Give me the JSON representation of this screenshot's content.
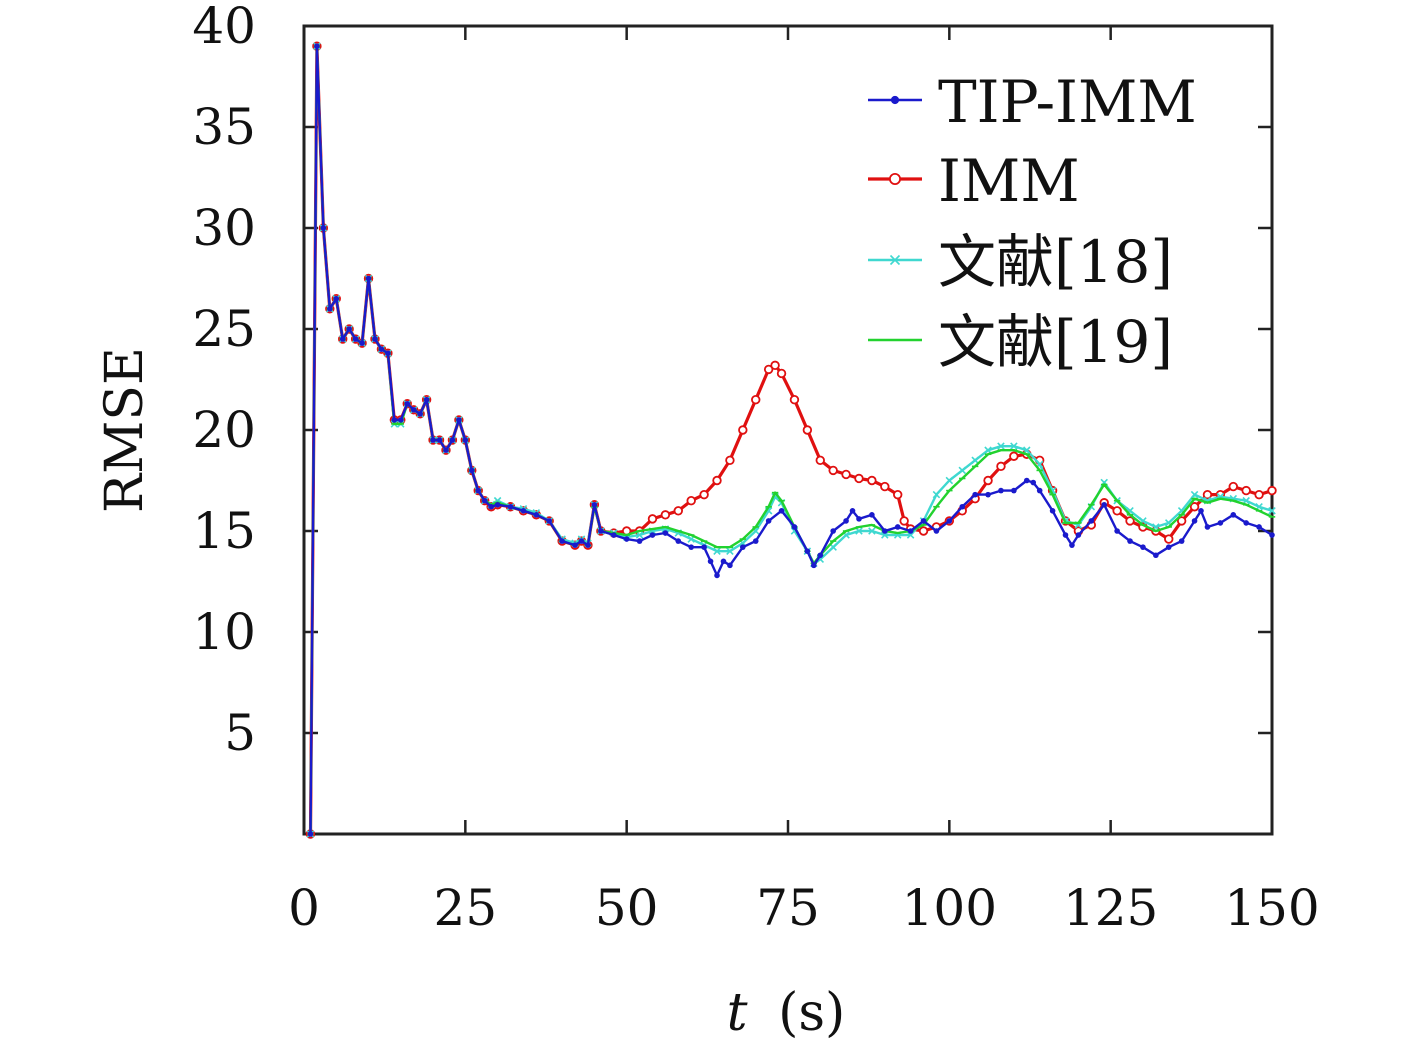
{
  "chart_data": {
    "type": "line",
    "xlabel_var": "t",
    "xlabel_unit": "(s)",
    "ylabel": "RMSE",
    "xlim": [
      0,
      150
    ],
    "ylim": [
      0,
      40
    ],
    "xticks": [
      0,
      25,
      50,
      75,
      100,
      125,
      150
    ],
    "yticks": [
      5,
      10,
      15,
      20,
      25,
      30,
      35,
      40
    ],
    "x_tick_labels": [
      "0",
      "25",
      "50",
      "75",
      "100",
      "125",
      "150"
    ],
    "y_tick_labels": [
      "5",
      "10",
      "15",
      "20",
      "25",
      "30",
      "35",
      "40"
    ],
    "grid": false,
    "legend_position": "top-right",
    "colors": {
      "TIP-IMM": "#1a1acc",
      "IMM": "#e01010",
      "文献[18]": "#3fd8d0",
      "文献[19]": "#22d22f"
    },
    "markers": {
      "TIP-IMM": "star",
      "IMM": "circle",
      "文献[18]": "x",
      "文献[19]": "dash"
    },
    "series": [
      {
        "name": "TIP-IMM",
        "x": [
          1,
          2,
          3,
          4,
          5,
          6,
          7,
          8,
          9,
          10,
          11,
          12,
          13,
          14,
          15,
          16,
          17,
          18,
          19,
          20,
          21,
          22,
          23,
          24,
          25,
          26,
          27,
          28,
          29,
          30,
          32,
          34,
          36,
          38,
          40,
          42,
          43,
          44,
          45,
          46,
          48,
          50,
          52,
          54,
          56,
          58,
          60,
          62,
          63,
          64,
          65,
          66,
          68,
          70,
          72,
          74,
          76,
          78,
          79,
          80,
          82,
          84,
          85,
          86,
          88,
          90,
          92,
          94,
          96,
          98,
          100,
          102,
          104,
          106,
          108,
          110,
          112,
          113,
          114,
          116,
          118,
          119,
          120,
          122,
          124,
          126,
          128,
          130,
          132,
          134,
          136,
          138,
          139,
          140,
          142,
          144,
          146,
          148,
          150
        ],
        "y": [
          0,
          39,
          30,
          26,
          26.5,
          24.5,
          25,
          24.5,
          24.3,
          27.5,
          24.5,
          24,
          23.8,
          20.5,
          20.5,
          21.3,
          21,
          20.8,
          21.5,
          19.5,
          19.5,
          19,
          19.5,
          20.5,
          19.5,
          18,
          17,
          16.5,
          16.2,
          16.3,
          16.2,
          16,
          15.8,
          15.5,
          14.5,
          14.3,
          14.5,
          14.3,
          16.3,
          15,
          14.8,
          14.6,
          14.5,
          14.8,
          14.9,
          14.5,
          14.2,
          14.2,
          13.5,
          12.8,
          13.5,
          13.3,
          14.2,
          14.5,
          15.5,
          16,
          15.2,
          14,
          13.3,
          13.8,
          15,
          15.5,
          16,
          15.6,
          15.8,
          15,
          15.2,
          15,
          15.5,
          15,
          15.5,
          16.2,
          16.8,
          16.8,
          17,
          17,
          17.5,
          17.4,
          17,
          16,
          14.8,
          14.3,
          14.8,
          15.5,
          16.3,
          15,
          14.5,
          14.2,
          13.8,
          14.2,
          14.5,
          15.5,
          16,
          15.2,
          15.4,
          15.8,
          15.4,
          15.2,
          14.8
        ]
      },
      {
        "name": "IMM",
        "x": [
          1,
          2,
          3,
          4,
          5,
          6,
          7,
          8,
          9,
          10,
          11,
          12,
          13,
          14,
          15,
          16,
          17,
          18,
          19,
          20,
          21,
          22,
          23,
          24,
          25,
          26,
          27,
          28,
          29,
          30,
          32,
          34,
          36,
          38,
          40,
          42,
          43,
          44,
          45,
          46,
          48,
          50,
          52,
          54,
          56,
          58,
          60,
          62,
          64,
          66,
          68,
          70,
          72,
          73,
          74,
          76,
          78,
          80,
          82,
          84,
          86,
          88,
          90,
          92,
          93,
          94,
          96,
          98,
          100,
          102,
          104,
          106,
          108,
          110,
          112,
          114,
          116,
          118,
          120,
          122,
          124,
          126,
          128,
          130,
          132,
          134,
          136,
          138,
          140,
          142,
          144,
          146,
          148,
          150
        ],
        "y": [
          0,
          39,
          30,
          26,
          26.5,
          24.5,
          25,
          24.5,
          24.3,
          27.5,
          24.5,
          24,
          23.8,
          20.5,
          20.5,
          21.3,
          21,
          20.8,
          21.5,
          19.5,
          19.5,
          19,
          19.5,
          20.5,
          19.5,
          18,
          17,
          16.5,
          16.2,
          16.3,
          16.2,
          16,
          15.8,
          15.5,
          14.5,
          14.3,
          14.5,
          14.3,
          16.3,
          15,
          14.9,
          15,
          15,
          15.6,
          15.8,
          16,
          16.5,
          16.8,
          17.5,
          18.5,
          20,
          21.5,
          23,
          23.2,
          22.8,
          21.5,
          20,
          18.5,
          18,
          17.8,
          17.6,
          17.5,
          17.2,
          16.8,
          15.5,
          15.1,
          15,
          15.2,
          15.5,
          16,
          16.6,
          17.5,
          18.2,
          18.7,
          18.8,
          18.5,
          17,
          15.5,
          15,
          15.3,
          16.4,
          16,
          15.5,
          15.2,
          15,
          14.6,
          15.5,
          16.2,
          16.8,
          16.8,
          17.2,
          17,
          16.8,
          17
        ]
      },
      {
        "name": "文献[18]",
        "x": [
          1,
          2,
          3,
          4,
          5,
          6,
          7,
          8,
          9,
          10,
          11,
          12,
          13,
          14,
          15,
          16,
          17,
          18,
          19,
          20,
          21,
          22,
          23,
          24,
          25,
          26,
          27,
          28,
          29,
          30,
          32,
          34,
          36,
          38,
          40,
          42,
          43,
          44,
          45,
          46,
          48,
          50,
          52,
          54,
          56,
          58,
          60,
          62,
          64,
          66,
          68,
          70,
          72,
          73,
          74,
          76,
          78,
          79,
          80,
          82,
          84,
          86,
          88,
          90,
          92,
          94,
          96,
          98,
          100,
          102,
          104,
          106,
          108,
          110,
          112,
          114,
          116,
          118,
          120,
          122,
          124,
          126,
          128,
          130,
          132,
          134,
          136,
          138,
          140,
          142,
          144,
          146,
          148,
          150
        ],
        "y": [
          0,
          39,
          30,
          26,
          26.5,
          24.5,
          25,
          24.5,
          24.3,
          27.5,
          24.5,
          24,
          23.8,
          20.3,
          20.3,
          21.3,
          21,
          20.8,
          21.5,
          19.5,
          19.5,
          19,
          19.5,
          20.5,
          19.5,
          18,
          17,
          16.5,
          16.3,
          16.5,
          16.2,
          16.1,
          15.9,
          15.5,
          14.6,
          14.4,
          14.6,
          14.4,
          16.3,
          15,
          14.9,
          14.7,
          14.8,
          15,
          15.1,
          14.9,
          14.6,
          14.3,
          14,
          14,
          14.4,
          15,
          16,
          16.7,
          16.4,
          15,
          14,
          13.4,
          13.6,
          14.2,
          14.8,
          15,
          15,
          14.8,
          14.8,
          14.8,
          15.5,
          16.8,
          17.5,
          18,
          18.5,
          19,
          19.2,
          19.2,
          19,
          18.3,
          17,
          15.5,
          15.3,
          16.2,
          17.4,
          16.5,
          16,
          15.5,
          15.2,
          15.4,
          16,
          16.8,
          16.5,
          16.7,
          16.6,
          16.5,
          16.2,
          16
        ]
      },
      {
        "name": "文献[19]",
        "x": [
          1,
          2,
          3,
          4,
          5,
          6,
          7,
          8,
          9,
          10,
          11,
          12,
          13,
          14,
          15,
          16,
          17,
          18,
          19,
          20,
          21,
          22,
          23,
          24,
          25,
          26,
          27,
          28,
          29,
          30,
          32,
          34,
          36,
          38,
          40,
          42,
          43,
          44,
          45,
          46,
          48,
          50,
          52,
          54,
          56,
          58,
          60,
          62,
          64,
          66,
          68,
          70,
          72,
          73,
          74,
          76,
          78,
          79,
          80,
          82,
          84,
          86,
          88,
          90,
          92,
          94,
          96,
          98,
          100,
          102,
          104,
          106,
          108,
          110,
          112,
          114,
          116,
          118,
          120,
          122,
          124,
          126,
          128,
          130,
          132,
          134,
          136,
          138,
          140,
          142,
          144,
          146,
          148,
          150
        ],
        "y": [
          0,
          39,
          30,
          26,
          26.5,
          24.5,
          25,
          24.5,
          24.3,
          27.5,
          24.5,
          24,
          23.8,
          20.3,
          20.3,
          21.3,
          21,
          20.8,
          21.5,
          19.5,
          19.5,
          19,
          19.5,
          20.5,
          19.5,
          18,
          17,
          16.5,
          16.3,
          16.4,
          16.2,
          16,
          15.8,
          15.5,
          14.5,
          14.3,
          14.5,
          14.3,
          16.2,
          15,
          14.9,
          14.8,
          15,
          15.1,
          15.2,
          15,
          14.8,
          14.5,
          14.2,
          14.2,
          14.6,
          15.2,
          16.2,
          16.9,
          16.5,
          15.2,
          14,
          13.4,
          13.8,
          14.5,
          15,
          15.2,
          15.3,
          15,
          14.9,
          15,
          15.3,
          16.2,
          17,
          17.6,
          18.2,
          18.8,
          19,
          19,
          18.8,
          18,
          16.8,
          15.4,
          15.4,
          16.3,
          17.3,
          16.5,
          15.8,
          15.3,
          15,
          15.2,
          15.8,
          16.6,
          16.4,
          16.6,
          16.5,
          16.3,
          16,
          15.7
        ]
      }
    ]
  }
}
